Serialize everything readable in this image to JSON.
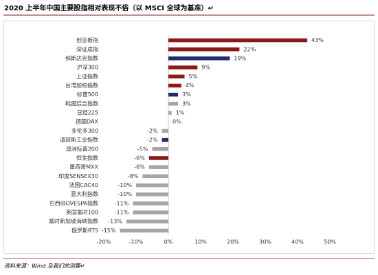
{
  "chart_data": {
    "type": "bar",
    "orientation": "horizontal",
    "title": "2020 上半年中国主要股指相对表现不俗（以 MSCI 全球为基准）↵",
    "source": "资料来源：Wind 及我们的测算↵",
    "categories": [
      "创业板指",
      "深证成指",
      "纳斯达克指数",
      "沪深300",
      "上证指数",
      "台湾加权指数",
      "标普500",
      "韩国综合指数",
      "日经225",
      "德国DAX",
      "多伦多300",
      "道琼斯工业指数",
      "澳洲标普200",
      "恒生指数",
      "墨西哥MXX",
      "印度SENSEX30",
      "法国CAC40",
      "意大利指数",
      "巴西IBOVESPA指数",
      "英国富时100",
      "富时新加坡海峡指数",
      "俄罗斯RTS"
    ],
    "values": [
      43,
      22,
      19,
      9,
      5,
      4,
      3,
      3,
      1,
      0,
      -2,
      -2,
      -5,
      -6,
      -6,
      -8,
      -10,
      -10,
      -11,
      -11,
      -13,
      -15
    ],
    "value_labels": [
      "43%",
      "22%",
      "19%",
      "9%",
      "5%",
      "4%",
      "3%",
      "3%",
      "1%",
      "0%",
      "-2%",
      "-2%",
      "-5%",
      "-6%",
      "-6%",
      "-8%",
      "-10%",
      "-10%",
      "-11%",
      "-11%",
      "-13%",
      "-15%"
    ],
    "colors": [
      "#8b1a1a",
      "#8b1a1a",
      "#1f2d6b",
      "#8b1a1a",
      "#8b1a1a",
      "#8b1a1a",
      "#1f2d6b",
      "#a6a6a6",
      "#a6a6a6",
      "#a6a6a6",
      "#a6a6a6",
      "#1f2d6b",
      "#a6a6a6",
      "#8b1a1a",
      "#a6a6a6",
      "#a6a6a6",
      "#a6a6a6",
      "#a6a6a6",
      "#a6a6a6",
      "#a6a6a6",
      "#a6a6a6",
      "#a6a6a6"
    ],
    "xlim": [
      -20,
      50
    ],
    "xticks": [
      {
        "value": -20,
        "label": "-20%"
      },
      {
        "value": -10,
        "label": "-10%"
      },
      {
        "value": 0,
        "label": "0%"
      },
      {
        "value": 10,
        "label": "10%"
      },
      {
        "value": 20,
        "label": "20%"
      },
      {
        "value": 30,
        "label": "30%"
      },
      {
        "value": 40,
        "label": "40%"
      },
      {
        "value": 50,
        "label": "50%"
      }
    ]
  }
}
